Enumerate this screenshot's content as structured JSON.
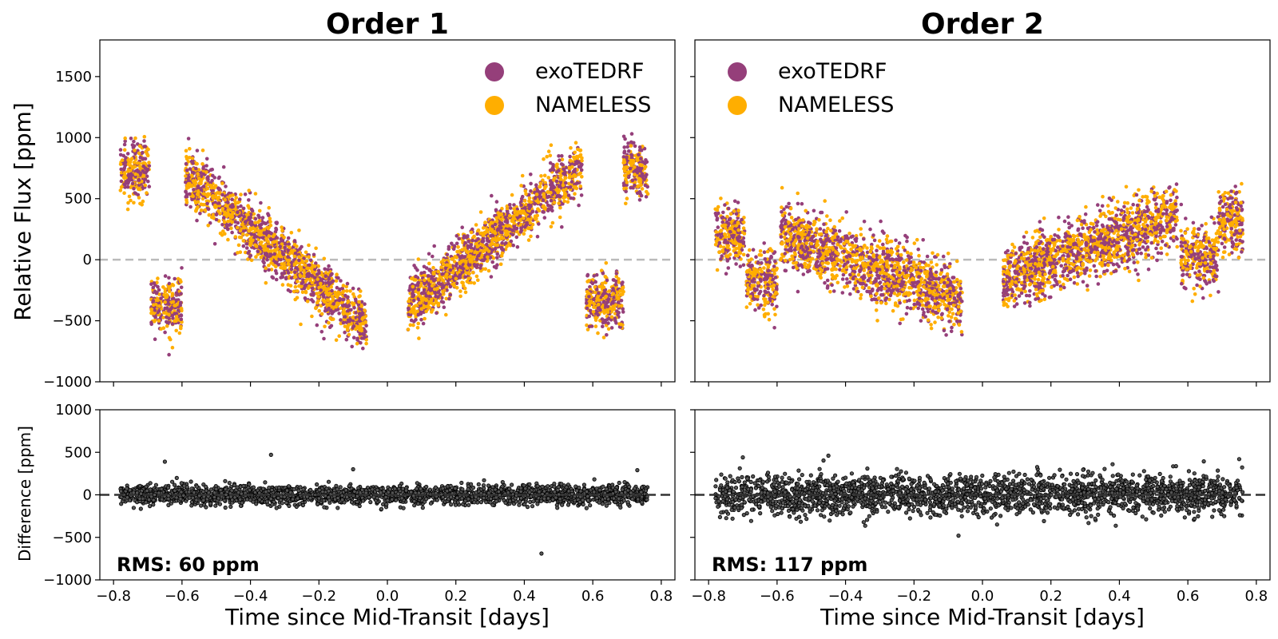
{
  "chart_data": [
    {
      "type": "scatter",
      "panel": "order1-flux",
      "title": "Order 1",
      "ylabel": "Relative Flux [ppm]",
      "xlim": [
        -0.84,
        0.84
      ],
      "ylim": [
        -1000,
        1800
      ],
      "yticks": [
        -1000,
        -500,
        0,
        500,
        1000,
        1500
      ],
      "ytick_labels": [
        "−1000",
        "−500",
        "0",
        "500",
        "1000",
        "1500"
      ],
      "zero_line": 0,
      "legend_position": "top-right",
      "series": [
        {
          "name": "exoTEDRF",
          "color": "#953f7a"
        },
        {
          "name": "NAMELESS",
          "color": "#ffae00"
        }
      ],
      "segments": [
        {
          "x0": -0.78,
          "x1": -0.695,
          "y0": 730,
          "y1": 740
        },
        {
          "x0": -0.69,
          "x1": -0.6,
          "y0": -380,
          "y1": -390
        },
        {
          "x0": -0.59,
          "x1": -0.06,
          "y0": 700,
          "y1": -540
        },
        {
          "x0": 0.06,
          "x1": 0.57,
          "y0": -380,
          "y1": 760
        },
        {
          "x0": 0.58,
          "x1": 0.69,
          "y0": -330,
          "y1": -330
        },
        {
          "x0": 0.69,
          "x1": 0.76,
          "y0": 780,
          "y1": 700
        }
      ],
      "scatter_sd": 110
    },
    {
      "type": "scatter",
      "panel": "order2-flux",
      "title": "Order 2",
      "xlim": [
        -0.84,
        0.84
      ],
      "ylim": [
        -1000,
        1800
      ],
      "zero_line": 0,
      "legend_position": "top-left",
      "series": [
        {
          "name": "exoTEDRF",
          "color": "#953f7a"
        },
        {
          "name": "NAMELESS",
          "color": "#ffae00"
        }
      ],
      "segments": [
        {
          "x0": -0.78,
          "x1": -0.695,
          "y0": 200,
          "y1": 180
        },
        {
          "x0": -0.69,
          "x1": -0.6,
          "y0": -150,
          "y1": -200
        },
        {
          "x0": -0.59,
          "x1": -0.06,
          "y0": 200,
          "y1": -320
        },
        {
          "x0": 0.06,
          "x1": 0.57,
          "y0": -150,
          "y1": 370
        },
        {
          "x0": 0.58,
          "x1": 0.69,
          "y0": 50,
          "y1": 0
        },
        {
          "x0": 0.69,
          "x1": 0.76,
          "y0": 340,
          "y1": 320
        }
      ],
      "scatter_sd": 130
    },
    {
      "type": "scatter",
      "panel": "order1-diff",
      "ylabel": "Difference [ppm]",
      "xlabel": "Time since Mid-Transit [days]",
      "xlim": [
        -0.84,
        0.84
      ],
      "ylim": [
        -1000,
        1000
      ],
      "yticks": [
        -1000,
        -500,
        0,
        500,
        1000
      ],
      "ytick_labels": [
        "−1000",
        "−500",
        "0",
        "500",
        "1000"
      ],
      "xticks": [
        -0.8,
        -0.6,
        -0.4,
        -0.2,
        0.0,
        0.2,
        0.4,
        0.6,
        0.8
      ],
      "xtick_labels": [
        "−0.8",
        "−0.6",
        "−0.4",
        "−0.2",
        "0.0",
        "0.2",
        "0.4",
        "0.6",
        "0.8"
      ],
      "zero_line": 0,
      "x_range": [
        -0.78,
        0.76
      ],
      "scatter_sd": 55,
      "outliers": [
        [
          -0.65,
          390
        ],
        [
          -0.34,
          470
        ],
        [
          -0.1,
          300
        ],
        [
          0.45,
          -690
        ],
        [
          0.73,
          290
        ]
      ],
      "rms_label": "RMS: 60 ppm"
    },
    {
      "type": "scatter",
      "panel": "order2-diff",
      "xlabel": "Time since Mid-Transit [days]",
      "xlim": [
        -0.84,
        0.84
      ],
      "ylim": [
        -1000,
        1000
      ],
      "xticks": [
        -0.8,
        -0.6,
        -0.4,
        -0.2,
        0.0,
        0.2,
        0.4,
        0.6,
        0.8
      ],
      "xtick_labels": [
        "−0.8",
        "−0.6",
        "−0.4",
        "−0.2",
        "0.0",
        "0.2",
        "0.4",
        "0.6",
        "0.8"
      ],
      "zero_line": 0,
      "x_range": [
        -0.78,
        0.76
      ],
      "scatter_sd": 115,
      "outliers": [
        [
          -0.7,
          440
        ],
        [
          -0.45,
          460
        ],
        [
          -0.07,
          -480
        ],
        [
          0.38,
          360
        ],
        [
          0.75,
          420
        ]
      ],
      "rms_label": "RMS: 117 ppm"
    }
  ]
}
